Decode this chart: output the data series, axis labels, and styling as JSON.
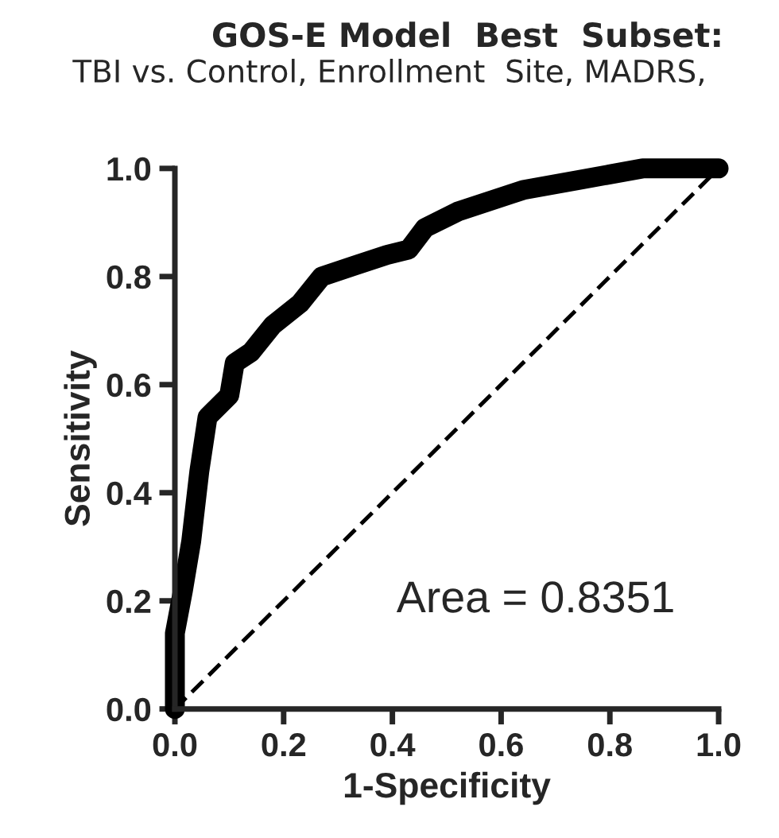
{
  "chart_data": {
    "type": "line",
    "title": "GOS-E Model  Best  Subset:",
    "subtitle": "TBI vs. Control, Enrollment  Site, MADRS,",
    "xlabel": "1-Specificity",
    "ylabel": "Sensitivity",
    "series": [
      {
        "color": "#000000",
        "line_style": "solid",
        "x": [
          0,
          0,
          0.015,
          0.03,
          0.045,
          0.06,
          0.1,
          0.11,
          0.14,
          0.18,
          0.23,
          0.27,
          0.33,
          0.39,
          0.43,
          0.46,
          0.52,
          0.64,
          0.75,
          0.86,
          1.0
        ],
        "values": [
          0,
          0.14,
          0.22,
          0.31,
          0.44,
          0.54,
          0.58,
          0.64,
          0.66,
          0.71,
          0.75,
          0.8,
          0.82,
          0.84,
          0.85,
          0.89,
          0.92,
          0.96,
          0.98,
          1.0,
          1.0
        ]
      },
      {
        "color": "#000000",
        "line_style": "dashed",
        "x": [
          0,
          1
        ],
        "values": [
          0,
          1
        ]
      }
    ],
    "xlim": [
      0,
      1
    ],
    "ylim": [
      0,
      1
    ],
    "xticks": [
      {
        "value": 0,
        "label": "0.0"
      },
      {
        "value": 0.2,
        "label": "0.2"
      },
      {
        "value": 0.4,
        "label": "0.4"
      },
      {
        "value": 0.6,
        "label": "0.6"
      },
      {
        "value": 0.8,
        "label": "0.8"
      },
      {
        "value": 1,
        "label": "1.0"
      }
    ],
    "yticks": [
      {
        "value": 0,
        "label": "0.0"
      },
      {
        "value": 0.2,
        "label": "0.2"
      },
      {
        "value": 0.4,
        "label": "0.4"
      },
      {
        "value": 0.6,
        "label": "0.6"
      },
      {
        "value": 0.8,
        "label": "0.8"
      },
      {
        "value": 1,
        "label": "1.0"
      }
    ],
    "annotations": [
      "Area = 0.8351"
    ],
    "grid": false,
    "legend": false
  }
}
